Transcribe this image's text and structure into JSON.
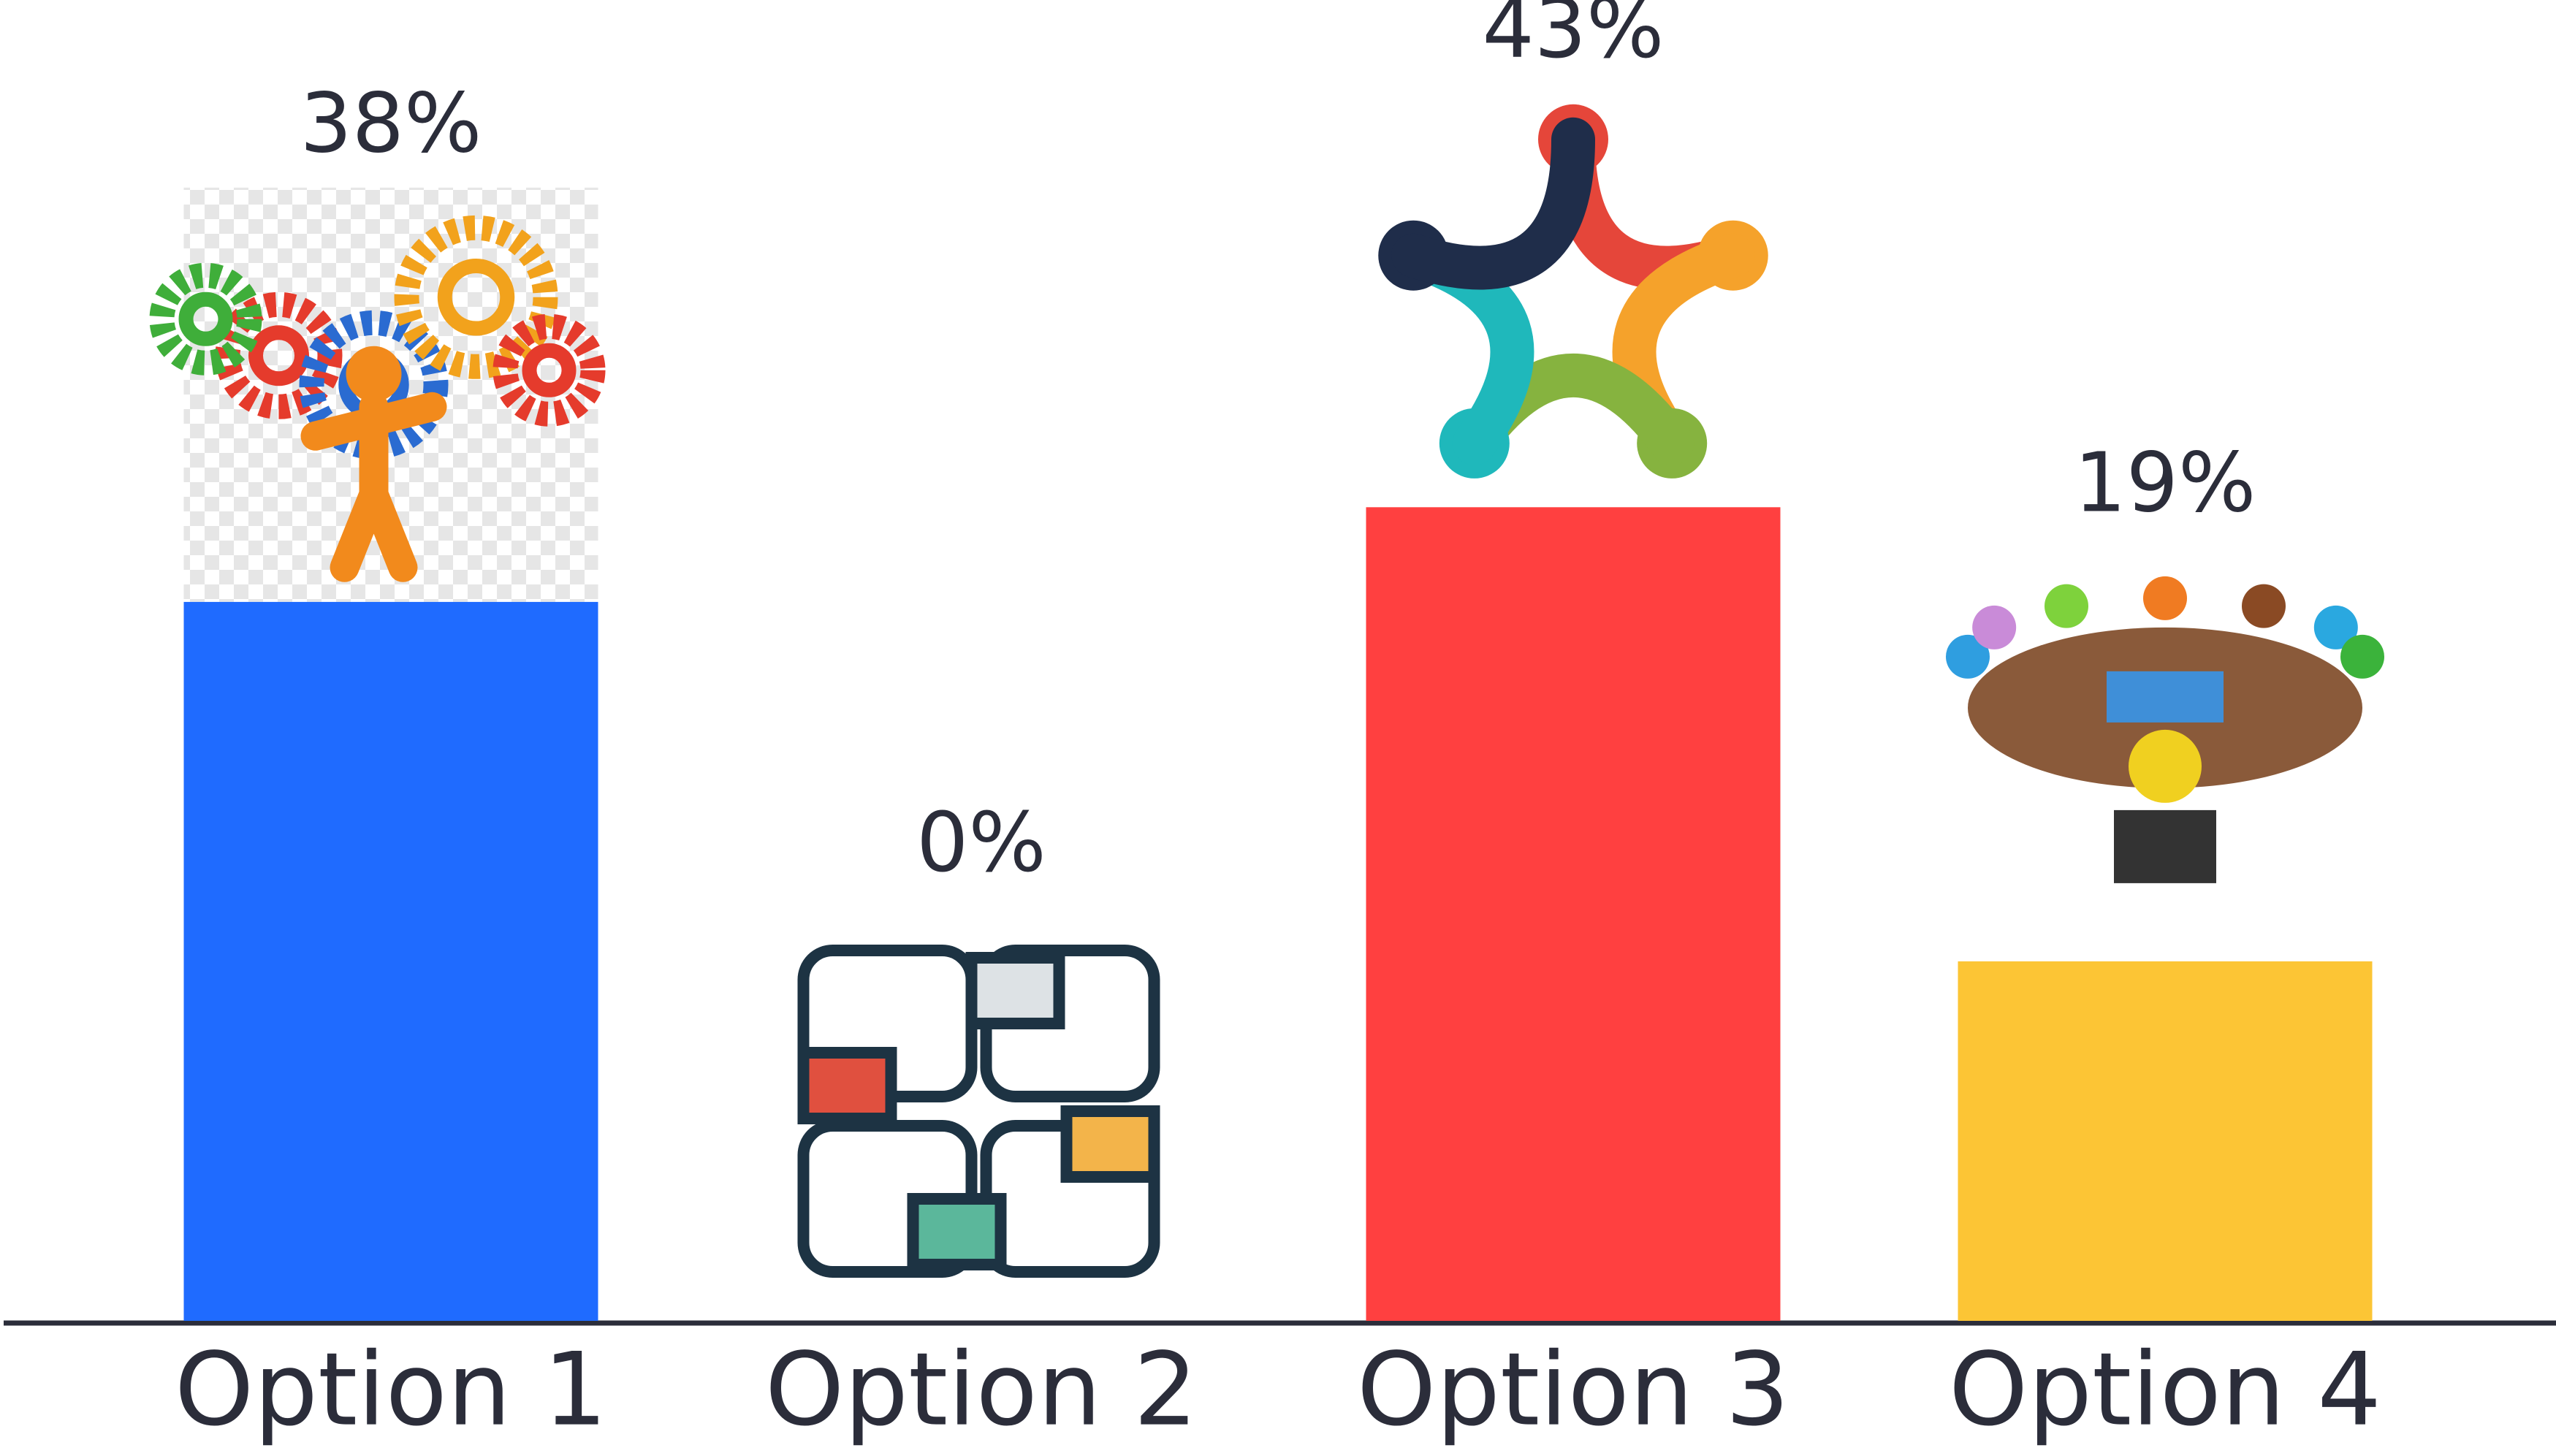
{
  "chart_data": {
    "type": "bar",
    "categories": [
      "Option 1",
      "Option 2",
      "Option 3",
      "Option 4"
    ],
    "values": [
      38,
      0,
      43,
      19
    ],
    "value_labels": [
      "38%",
      "0%",
      "43%",
      "19%"
    ],
    "colors": [
      "#1f6bff",
      "#4cb89a",
      "#ff4040",
      "#fcc535"
    ]
  }
}
